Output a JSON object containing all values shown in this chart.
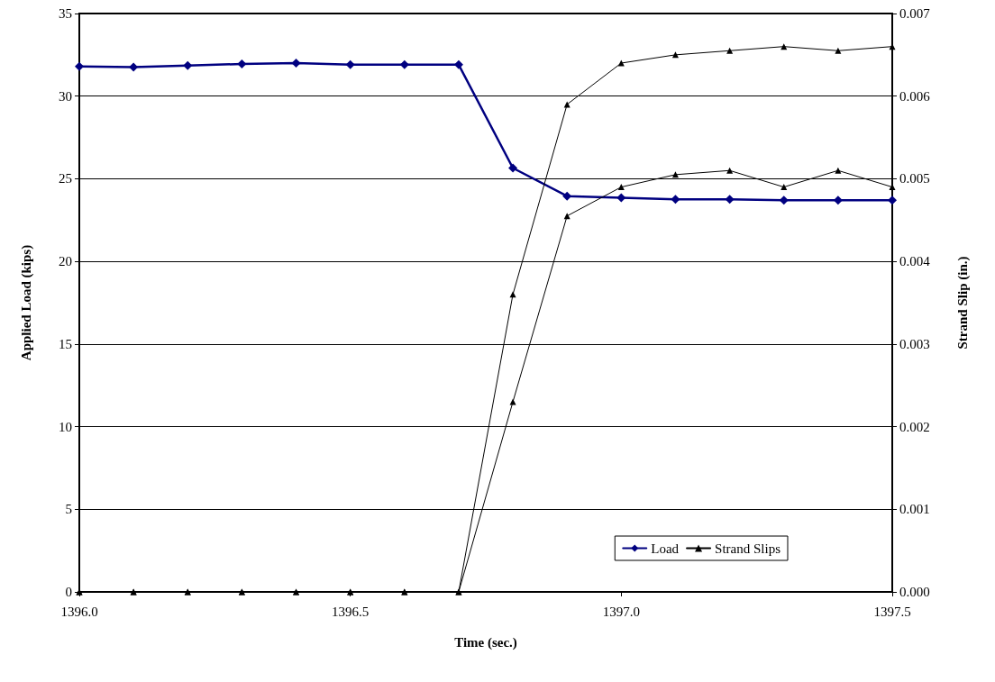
{
  "chart_data": {
    "type": "line",
    "xlabel": "Time (sec.)",
    "ylabel": "Applied Load (kips)",
    "y2label": "Strand Slip (in.)",
    "x": [
      1396.0,
      1396.1,
      1396.2,
      1396.3,
      1396.4,
      1396.5,
      1396.6,
      1396.7,
      1396.8,
      1396.9,
      1397.0,
      1397.1,
      1397.2,
      1397.3,
      1397.4,
      1397.5
    ],
    "series": [
      {
        "name": "Load",
        "color": "#000080",
        "marker": "diamond",
        "values": [
          31.8,
          31.75,
          31.85,
          31.95,
          32.0,
          31.9,
          31.9,
          31.9,
          25.65,
          23.95,
          23.85,
          23.75,
          23.75,
          23.7,
          23.7,
          23.7
        ]
      },
      {
        "name": "Strand Slips",
        "color": "#000000",
        "marker": "triangle",
        "axis": "y2",
        "values": [
          0,
          0,
          0,
          0,
          0,
          0,
          0,
          0,
          0.0036,
          0.0059,
          0.0064,
          0.0065,
          0.00655,
          0.0066,
          0.00655,
          0.0066
        ]
      },
      {
        "color": "#000000",
        "marker": "triangle",
        "axis": "y2",
        "values": [
          0,
          0,
          0,
          0,
          0,
          0,
          0,
          0,
          0.0023,
          0.00455,
          0.0049,
          0.00505,
          0.0051,
          0.0049,
          0.0051,
          0.0049
        ]
      }
    ],
    "xlim": [
      1396.0,
      1397.5
    ],
    "xticks": [
      {
        "value": 1396.0,
        "label": "1396.0"
      },
      {
        "value": 1396.5,
        "label": "1396.5"
      },
      {
        "value": 1397.0,
        "label": "1397.0"
      },
      {
        "value": 1397.5,
        "label": "1397.5"
      }
    ],
    "ylim": [
      0,
      35
    ],
    "yticks": [
      0,
      5,
      10,
      15,
      20,
      25,
      30,
      35
    ],
    "y2lim": [
      0,
      0.007
    ],
    "y2ticks": [
      {
        "value": 0,
        "label": "0.000"
      },
      {
        "value": 0.001,
        "label": "0.001"
      },
      {
        "value": 0.002,
        "label": "0.002"
      },
      {
        "value": 0.003,
        "label": "0.003"
      },
      {
        "value": 0.004,
        "label": "0.004"
      },
      {
        "value": 0.005,
        "label": "0.005"
      },
      {
        "value": 0.006,
        "label": "0.006"
      },
      {
        "value": 0.007,
        "label": "0.007"
      }
    ],
    "grid": "y",
    "legend": "bottom right",
    "line_style": "solid"
  }
}
